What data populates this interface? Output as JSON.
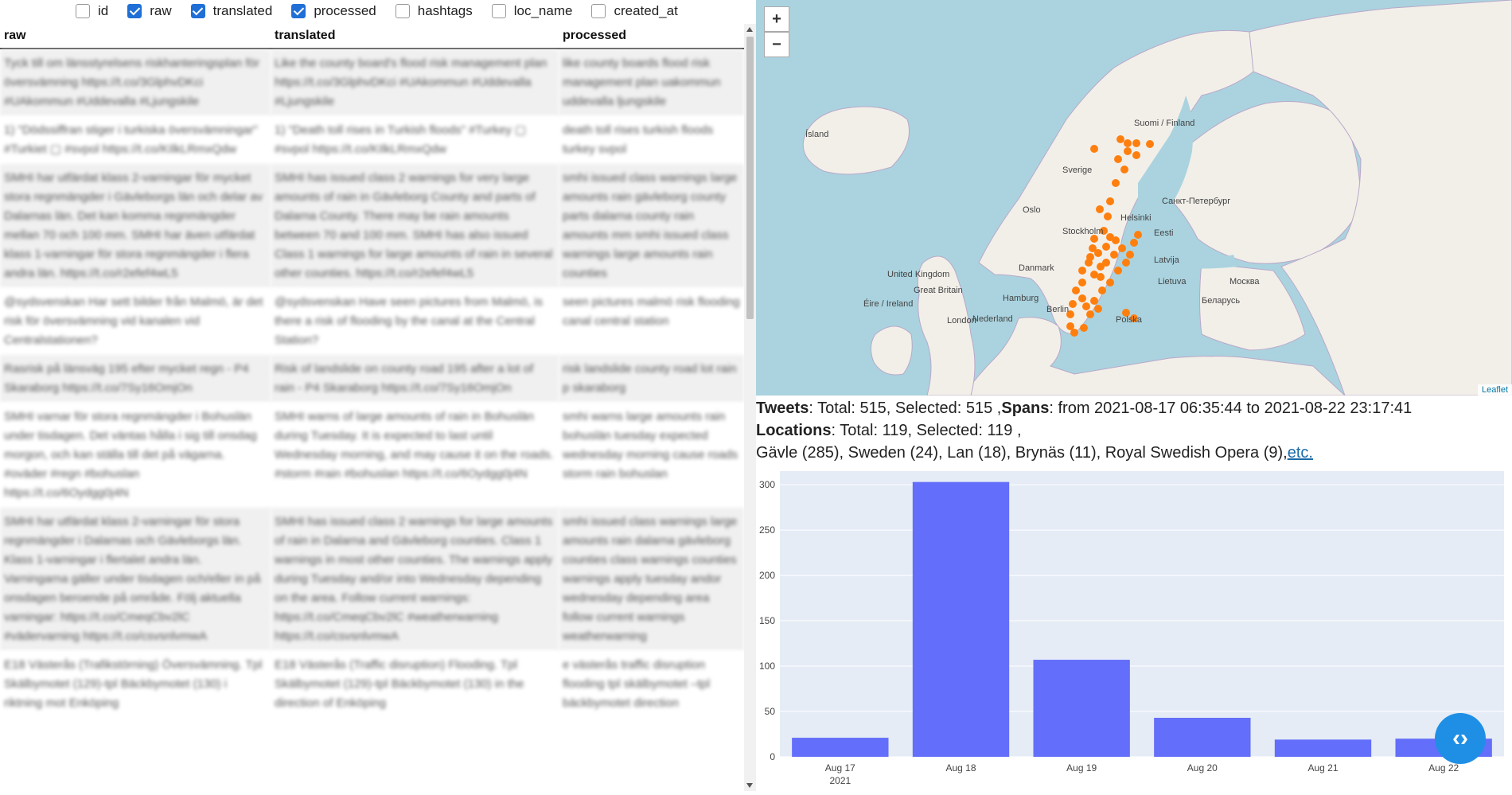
{
  "column_toggles": [
    {
      "label": "id",
      "checked": false
    },
    {
      "label": "raw",
      "checked": true
    },
    {
      "label": "translated",
      "checked": true
    },
    {
      "label": "processed",
      "checked": true
    },
    {
      "label": "hashtags",
      "checked": false
    },
    {
      "label": "loc_name",
      "checked": false
    },
    {
      "label": "created_at",
      "checked": false
    }
  ],
  "table": {
    "headers": [
      "raw",
      "translated",
      "processed"
    ],
    "rows": [
      [
        "Tyck till om länsstyrelsens riskhanteringsplan för översvämning https://t.co/3GlphvDKci #UAkommun #Uddevalla #Ljungskile",
        "Like the county board's flood risk management plan https://t.co/3GlphvDKci #UAkommun #Uddevalla #Ljungskile",
        "like county boards flood risk management plan uakommun uddevalla ljungskile"
      ],
      [
        "1) \"Dödssiffran stiger i turkiska översvämningar\" #Turkiet ▢ #svpol https://t.co/KIlkLRmxQdw",
        "1) \"Death toll rises in Turkish floods\" #Turkey ▢ #svpol https://t.co/KIlkLRmxQdw",
        "death toll rises turkish floods turkey svpol"
      ],
      [
        "SMHI har utfärdat klass 2-varningar för mycket stora regnmängder i Gävleborgs län och delar av Dalarnas län. Det kan komma regnmängder mellan 70 och 100 mm. SMHI har även utfärdat klass 1-varningar för stora regnmängder i flera andra län. https://t.co/r2efef4wL5",
        "SMHI has issued class 2 warnings for very large amounts of rain in Gävleborg County and parts of Dalarna County. There may be rain amounts between 70 and 100 mm. SMHI has also issued Class 1 warnings for large amounts of rain in several other counties. https://t.co/r2efef4wL5",
        "smhi issued class warnings large amounts rain gävleborg county parts dalarna county rain amounts mm smhi issued class warnings large amounts rain counties"
      ],
      [
        "@sydsvenskan Har sett bilder från Malmö, är det risk för översvämning vid kanalen vid Centralstationen?",
        "@sydsvenskan Have seen pictures from Malmö, is there a risk of flooding by the canal at the Central Station?",
        "seen pictures malmö risk flooding canal central station"
      ],
      [
        "Rasrisk på länsväg 195 efter mycket regn - P4 Skaraborg https://t.co/7Sy16OmjOn",
        "Risk of landslide on county road 195 after a lot of rain - P4 Skaraborg https://t.co/7Sy16OmjOn",
        "risk landslide county road lot rain p skaraborg"
      ],
      [
        "SMHI varnar för stora regnmängder i Bohuslän under tisdagen. Det väntas hålla i sig till onsdag morgon, och kan ställa till det på vägarna. #oväder #regn #bohuslan https://t.co/6Oydgg0j4N",
        "SMHI warns of large amounts of rain in Bohuslän during Tuesday. It is expected to last until Wednesday morning, and may cause it on the roads. #storm #rain #bohuslan https://t.co/6Oydgg0j4N",
        "smhi warns large amounts rain bohuslän tuesday expected wednesday morning cause roads storm rain bohuslan"
      ],
      [
        "SMHI har utfärdat klass 2-varningar för stora regnmängder i Dalarnas och Gävleborgs län. Klass 1-varningar i flertalet andra län. Varningarna gäller under tisdagen och/eller in på onsdagen beroende på område. Följ aktuella varningar: https://t.co/CmeqCbv2lC #vädervarning https://t.co/csvsnlvmwA",
        "SMHI has issued class 2 warnings for large amounts of rain in Dalarna and Gävleborg counties. Class 1 warnings in most other counties. The warnings apply during Tuesday and/or into Wednesday depending on the area. Follow current warnings: https://t.co/CmeqCbv2lC #weatherwarning https://t.co/csvsnlvmwA",
        "smhi issued class warnings large amounts rain dalarna gävleborg counties class warnings counties warnings apply tuesday andor wednesday depending area follow current warnings weatherwarning"
      ],
      [
        "E18 Västerås (Trafikstörning) Översvämning. Tpl Skälbymotet (129)-tpl Bäckbymotet (130) i riktning mot Enköping",
        "E18 Västerås (Traffic disruption) Flooding. Tpl Skälbymotet (129)-tpl Bäckbymotet (130) in the direction of Enköping",
        "e västerås traffic disruption flooding tpl skälbymotet –tpl bäckbymotet direction"
      ]
    ]
  },
  "map": {
    "zoom_in": "+",
    "zoom_out": "−",
    "attribution": "Leaflet",
    "labels": [
      "Ísland",
      "Sverige",
      "Suomi / Finland",
      "Oslo",
      "Stockholm",
      "Helsinki",
      "Eesti",
      "Санкт-Петербург",
      "Latvija",
      "Danmark",
      "Lietuva",
      "Москва",
      "United Kingdom",
      "Great Britain",
      "Éire / Ireland",
      "Hamburg",
      "Беларусь",
      "Berlin",
      "Nederland",
      "London",
      "Polska"
    ],
    "marker_color": "#ff7f0e"
  },
  "info": {
    "tweets_label": "Tweets",
    "tweets_text": ": Total: 515, Selected: 515 ,",
    "spans_label": "Spans",
    "spans_text": ": from 2021-08-17 06:35:44 to 2021-08-22 23:17:41",
    "locations_label": "Locations",
    "locations_text": ": Total: 119, Selected: 119 ,",
    "top_locations": "Gävle (285), Sweden (24), Lan (18), Brynäs (11), Royal Swedish Opera (9),",
    "etc_link": "etc."
  },
  "chart_data": {
    "type": "bar",
    "categories": [
      "Aug 17",
      "Aug 18",
      "Aug 19",
      "Aug 20",
      "Aug 21",
      "Aug 22"
    ],
    "x_year_label": "2021",
    "values": [
      21,
      303,
      107,
      43,
      19,
      20
    ],
    "ylim": [
      0,
      315
    ],
    "yticks": [
      0,
      50,
      100,
      150,
      200,
      250,
      300
    ],
    "bar_color": "#636efa",
    "plot_bg": "#e5ecf6",
    "grid": true
  },
  "fab": {
    "icon": "code-icon",
    "glyph": "‹›"
  }
}
